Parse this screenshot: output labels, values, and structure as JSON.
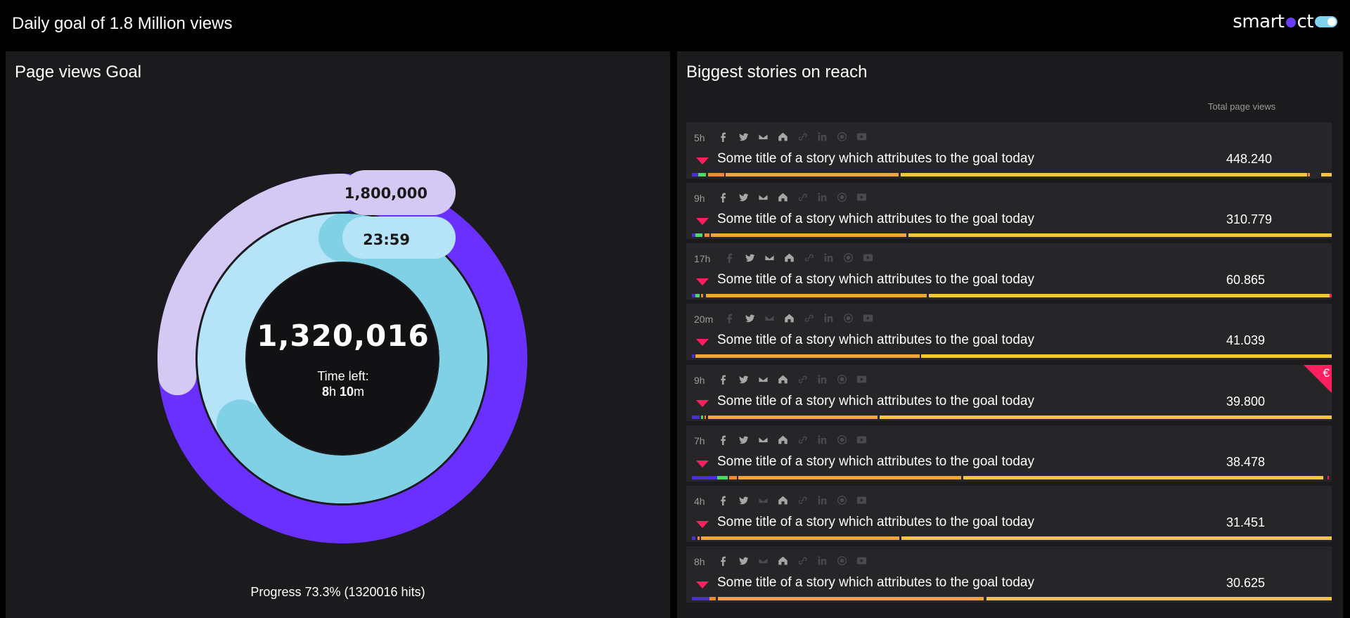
{
  "header": {
    "title": "Daily goal of 1.8 Million views",
    "logo_text": "smart",
    "logo_text2": "ct"
  },
  "goal_panel": {
    "title": "Page views Goal",
    "goal_label": "1,800,000",
    "clock_label": "23:59",
    "center_value": "1,320,016",
    "time_left_label": "Time left:",
    "time_left_hours": "8",
    "time_left_h_unit": "h ",
    "time_left_minutes": "10",
    "time_left_m_unit": "m",
    "progress_text": "Progress 73.3% (1320016 hits)",
    "progress_fraction": 0.733,
    "time_elapsed_fraction": 0.66,
    "colors": {
      "goal_track": "#d3c9f3",
      "progress": "#6930ff",
      "time_track": "#b5e3f8",
      "time_fill": "#80d1e6"
    }
  },
  "stories_panel": {
    "title": "Biggest stories on reach",
    "column_header": "Total page views",
    "stories": [
      {
        "age": "5h",
        "title": "Some title of a story which attributes to the goal today",
        "views": "448.240",
        "premium": false,
        "icons_on": [
          1,
          1,
          1,
          1,
          0,
          0,
          0,
          0
        ],
        "bar": [
          [
            "#4a2fd6",
            0.0,
            0.01
          ],
          [
            "#4cd964",
            0.01,
            0.012
          ],
          [
            "#f08a2c",
            0.025,
            0.025
          ],
          [
            "#f2a63a",
            0.053,
            0.27
          ],
          [
            "#f5c542",
            0.326,
            0.635
          ],
          [
            "#f08a2c",
            0.963,
            0.003
          ],
          [
            "#f5c542",
            0.984,
            0.016
          ]
        ]
      },
      {
        "age": "9h",
        "title": "Some title of a story which attributes to the goal today",
        "views": "310.779",
        "premium": false,
        "icons_on": [
          1,
          1,
          1,
          1,
          0,
          0,
          0,
          0
        ],
        "bar": [
          [
            "#4a2fd6",
            0.0,
            0.006
          ],
          [
            "#4cd964",
            0.006,
            0.01
          ],
          [
            "#f08a2c",
            0.02,
            0.007
          ],
          [
            "#f2a63a",
            0.03,
            0.305
          ],
          [
            "#f5c542",
            0.338,
            0.662
          ]
        ]
      },
      {
        "age": "17h",
        "title": "Some title of a story which attributes to the goal today",
        "views": "60.865",
        "premium": false,
        "icons_on": [
          0,
          1,
          1,
          1,
          0,
          0,
          0,
          0
        ],
        "bar": [
          [
            "#4a2fd6",
            0.0,
            0.006
          ],
          [
            "#4cd964",
            0.006,
            0.006
          ],
          [
            "#f08a2c",
            0.014,
            0.004
          ],
          [
            "#f2a63a",
            0.022,
            0.345
          ],
          [
            "#f5c542",
            0.37,
            0.627
          ],
          [
            "#ff1f5e",
            0.997,
            0.003
          ]
        ]
      },
      {
        "age": "20m",
        "title": "Some title of a story which attributes to the goal today",
        "views": "41.039",
        "premium": false,
        "icons_on": [
          0,
          1,
          0,
          1,
          0,
          0,
          0,
          0
        ],
        "bar": [
          [
            "#4a2fd6",
            0.0,
            0.004
          ],
          [
            "#f2a63a",
            0.006,
            0.35
          ],
          [
            "#f5c542",
            0.358,
            0.642
          ]
        ]
      },
      {
        "age": "9h",
        "title": "Some title of a story which attributes to the goal today",
        "views": "39.800",
        "premium": true,
        "premium_symbol": "€",
        "icons_on": [
          1,
          1,
          1,
          1,
          0,
          0,
          0,
          0
        ],
        "bar": [
          [
            "#4a2fd6",
            0.0,
            0.012
          ],
          [
            "#4cd964",
            0.014,
            0.004
          ],
          [
            "#f08a2c",
            0.02,
            0.002
          ],
          [
            "#f2a63a",
            0.025,
            0.265
          ],
          [
            "#f5c542",
            0.293,
            0.707
          ]
        ]
      },
      {
        "age": "7h",
        "title": "Some title of a story which attributes to the goal today",
        "views": "38.478",
        "premium": false,
        "icons_on": [
          1,
          1,
          1,
          1,
          0,
          0,
          0,
          0
        ],
        "bar": [
          [
            "#4a2fd6",
            0.0,
            0.04
          ],
          [
            "#4cd964",
            0.04,
            0.016
          ],
          [
            "#f08a2c",
            0.058,
            0.012
          ],
          [
            "#f2a63a",
            0.073,
            0.348
          ],
          [
            "#f5c542",
            0.424,
            0.563
          ],
          [
            "#ff1f5e",
            0.993,
            0.003
          ]
        ]
      },
      {
        "age": "4h",
        "title": "Some title of a story which attributes to the goal today",
        "views": "31.451",
        "premium": false,
        "icons_on": [
          1,
          1,
          0,
          1,
          0,
          0,
          0,
          0
        ],
        "bar": [
          [
            "#4a2fd6",
            0.0,
            0.006
          ],
          [
            "#f08a2c",
            0.009,
            0.003
          ],
          [
            "#f2a63a",
            0.014,
            0.31
          ],
          [
            "#f5c542",
            0.327,
            0.673
          ]
        ]
      },
      {
        "age": "8h",
        "title": "Some title of a story which attributes to the goal today",
        "views": "30.625",
        "premium": false,
        "icons_on": [
          1,
          1,
          0,
          1,
          0,
          0,
          0,
          0
        ],
        "bar": [
          [
            "#4a2fd6",
            0.0,
            0.027
          ],
          [
            "#f08a2c",
            0.028,
            0.009
          ],
          [
            "#f2a63a",
            0.041,
            0.415
          ],
          [
            "#f5c542",
            0.46,
            0.54
          ]
        ]
      }
    ],
    "icon_names": [
      "facebook-icon",
      "twitter-icon",
      "mail-icon",
      "home-icon",
      "link-icon",
      "linkedin-icon",
      "radio-icon",
      "youtube-icon"
    ]
  }
}
